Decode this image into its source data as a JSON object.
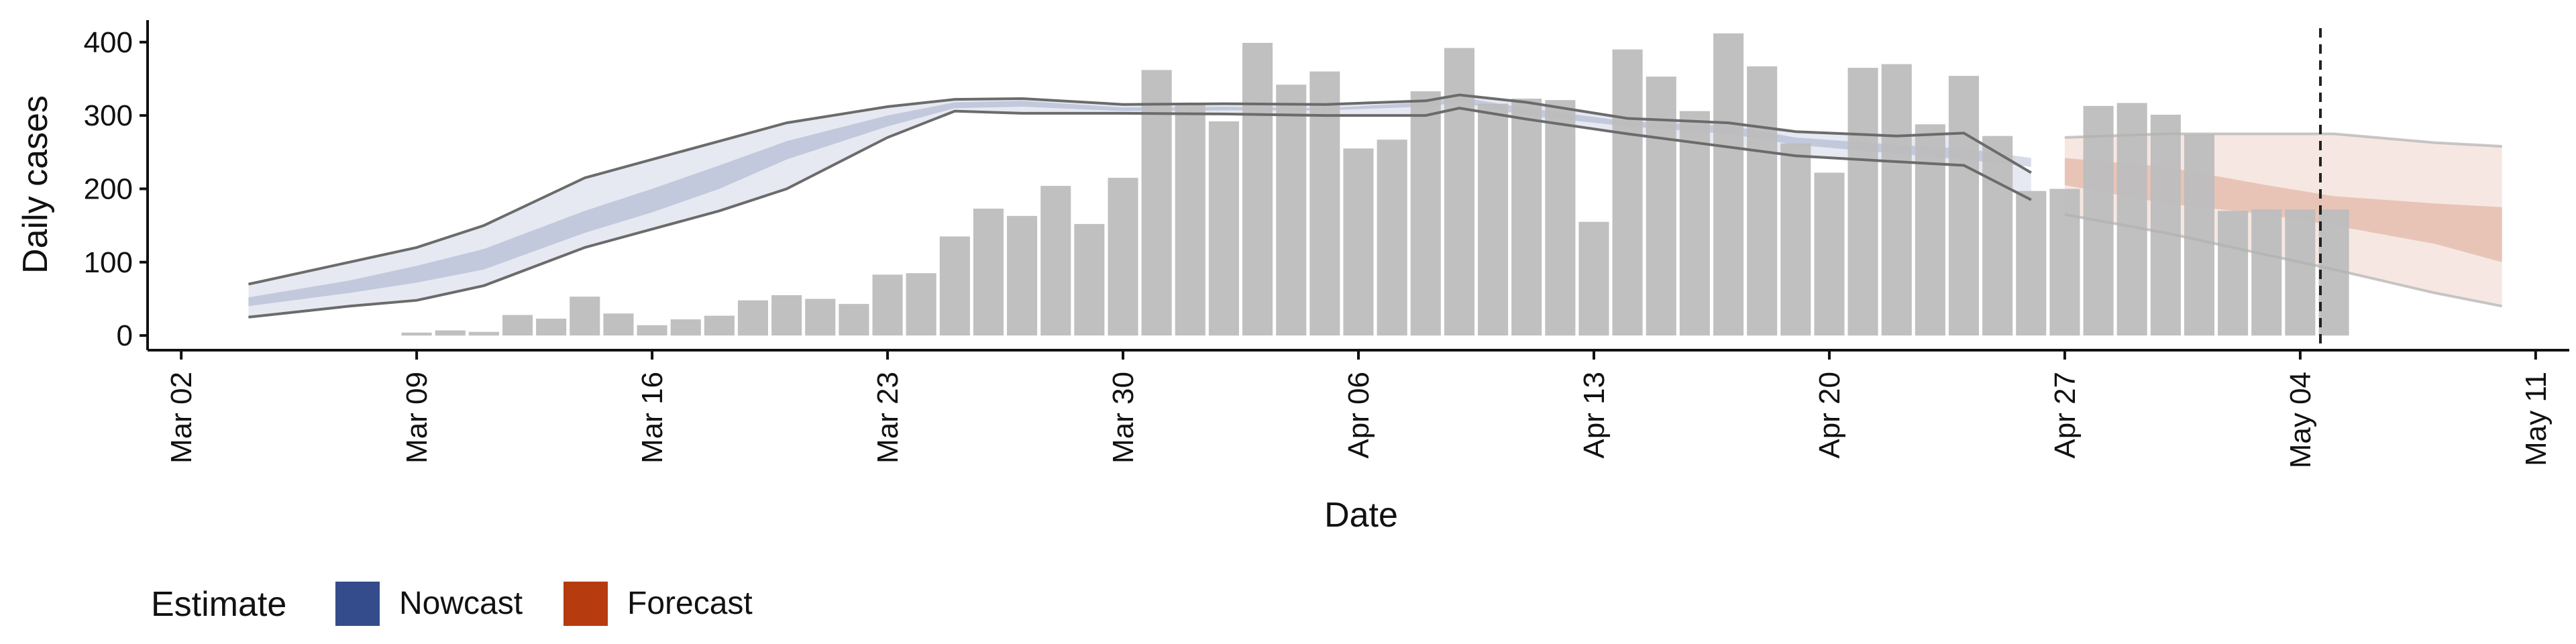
{
  "chart_data": {
    "type": "bar",
    "xlabel": "Date",
    "ylabel": "Daily cases",
    "x_axis": {
      "ticks": [
        "Mar 02",
        "Mar 09",
        "Mar 16",
        "Mar 23",
        "Mar 30",
        "Apr 06",
        "Apr 13",
        "Apr 20",
        "Apr 27",
        "May 04",
        "May 11"
      ],
      "range": [
        "2020-03-01",
        "2020-05-12"
      ]
    },
    "y_axis": {
      "ticks": [
        0,
        100,
        200,
        300,
        400
      ],
      "range": [
        -20,
        430
      ]
    },
    "grid": false,
    "legend": {
      "title": "Estimate",
      "placement": "bottom-left",
      "entries": [
        {
          "label": "Nowcast",
          "color": "#354c8c"
        },
        {
          "label": "Forecast",
          "color": "#b63b0f"
        }
      ]
    },
    "vline_date": "2020-05-04",
    "cases": {
      "dates": [
        "2020-03-09",
        "2020-03-10",
        "2020-03-11",
        "2020-03-12",
        "2020-03-13",
        "2020-03-14",
        "2020-03-15",
        "2020-03-16",
        "2020-03-17",
        "2020-03-18",
        "2020-03-19",
        "2020-03-20",
        "2020-03-21",
        "2020-03-22",
        "2020-03-23",
        "2020-03-24",
        "2020-03-25",
        "2020-03-26",
        "2020-03-27",
        "2020-03-28",
        "2020-03-29",
        "2020-03-30",
        "2020-03-31",
        "2020-04-01",
        "2020-04-02",
        "2020-04-03",
        "2020-04-04",
        "2020-04-05",
        "2020-04-06",
        "2020-04-07",
        "2020-04-08",
        "2020-04-09",
        "2020-04-10",
        "2020-04-11",
        "2020-04-12",
        "2020-04-13",
        "2020-04-14",
        "2020-04-15",
        "2020-04-16",
        "2020-04-17",
        "2020-04-18",
        "2020-04-19",
        "2020-04-20",
        "2020-04-21",
        "2020-04-22",
        "2020-04-23",
        "2020-04-24",
        "2020-04-25",
        "2020-04-26",
        "2020-04-27",
        "2020-04-28",
        "2020-04-29",
        "2020-04-30",
        "2020-05-01",
        "2020-05-02",
        "2020-05-03",
        "2020-05-04",
        "2020-05-05"
      ],
      "values": [
        4,
        7,
        5,
        28,
        23,
        53,
        30,
        14,
        22,
        27,
        48,
        55,
        50,
        43,
        83,
        85,
        135,
        173,
        163,
        204,
        152,
        215,
        362,
        316,
        292,
        399,
        342,
        360,
        255,
        267,
        333,
        392,
        316,
        323,
        321,
        155,
        390,
        353,
        306,
        412,
        367,
        262,
        222,
        365,
        370,
        288,
        354,
        272,
        197,
        200,
        313,
        317,
        301,
        274,
        170,
        172,
        172,
        172
      ],
      "color": "#bdbdbd"
    },
    "nowcast": {
      "dates": [
        "2020-03-04",
        "2020-03-07",
        "2020-03-09",
        "2020-03-11",
        "2020-03-14",
        "2020-03-16",
        "2020-03-18",
        "2020-03-20",
        "2020-03-23",
        "2020-03-25",
        "2020-03-27",
        "2020-03-30",
        "2020-04-02",
        "2020-04-05",
        "2020-04-08",
        "2020-04-09",
        "2020-04-11",
        "2020-04-14",
        "2020-04-17",
        "2020-04-19",
        "2020-04-22",
        "2020-04-24",
        "2020-04-26"
      ],
      "upper_90": [
        70,
        100,
        120,
        150,
        215,
        240,
        265,
        290,
        312,
        322,
        323,
        315,
        316,
        315,
        320,
        328,
        318,
        296,
        290,
        278,
        272,
        276,
        222
      ],
      "upper_50": [
        52,
        75,
        95,
        118,
        170,
        200,
        232,
        265,
        300,
        318,
        320,
        311,
        312,
        310,
        318,
        325,
        310,
        292,
        286,
        270,
        260,
        255,
        242
      ],
      "lower_50": [
        40,
        58,
        72,
        90,
        140,
        168,
        200,
        240,
        285,
        310,
        312,
        306,
        307,
        307,
        312,
        318,
        300,
        285,
        275,
        260,
        248,
        240,
        230
      ],
      "lower_90": [
        25,
        40,
        48,
        68,
        120,
        145,
        170,
        200,
        270,
        306,
        303,
        303,
        302,
        300,
        300,
        310,
        295,
        275,
        257,
        245,
        237,
        232,
        185
      ],
      "color": "#354c8c"
    },
    "forecast": {
      "dates": [
        "2020-04-27",
        "2020-04-30",
        "2020-05-03",
        "2020-05-05",
        "2020-05-08",
        "2020-05-10"
      ],
      "upper_90": [
        270,
        275,
        275,
        275,
        263,
        258
      ],
      "upper_50": [
        242,
        230,
        205,
        190,
        180,
        175
      ],
      "lower_50": [
        205,
        180,
        165,
        150,
        125,
        100
      ],
      "lower_90": [
        165,
        140,
        110,
        90,
        58,
        40
      ],
      "color": "#b63b0f"
    }
  }
}
